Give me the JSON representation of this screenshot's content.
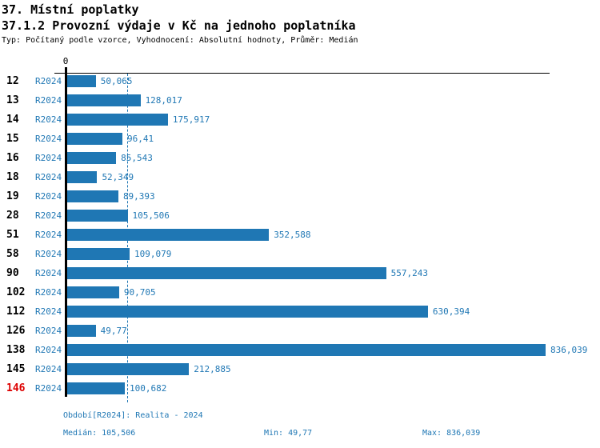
{
  "header": {
    "title1": "37. Místní poplatky",
    "title2": "37.1.2 Provozní výdaje v Kč na jednoho poplatníka",
    "subtitle": "Typ: Počítaný podle vzorce, Vyhodnocení: Absolutní hodnoty, Průměr: Medián"
  },
  "chart_data": {
    "type": "bar",
    "orientation": "horizontal",
    "series_label": "R2024",
    "zero_tick_label": "0",
    "xlim": [
      0,
      836.039
    ],
    "median_value": 105.506,
    "grid": "median-dashed-line",
    "rows": [
      {
        "id": "12",
        "value": 50.065,
        "label": "50,065",
        "highlighted": false
      },
      {
        "id": "13",
        "value": 128.017,
        "label": "128,017",
        "highlighted": false
      },
      {
        "id": "14",
        "value": 175.917,
        "label": "175,917",
        "highlighted": false
      },
      {
        "id": "15",
        "value": 96.41,
        "label": "96,41",
        "highlighted": false
      },
      {
        "id": "16",
        "value": 85.543,
        "label": "85,543",
        "highlighted": false
      },
      {
        "id": "18",
        "value": 52.349,
        "label": "52,349",
        "highlighted": false
      },
      {
        "id": "19",
        "value": 89.393,
        "label": "89,393",
        "highlighted": false
      },
      {
        "id": "28",
        "value": 105.506,
        "label": "105,506",
        "highlighted": false
      },
      {
        "id": "51",
        "value": 352.588,
        "label": "352,588",
        "highlighted": false
      },
      {
        "id": "58",
        "value": 109.079,
        "label": "109,079",
        "highlighted": false
      },
      {
        "id": "90",
        "value": 557.243,
        "label": "557,243",
        "highlighted": false
      },
      {
        "id": "102",
        "value": 90.705,
        "label": "90,705",
        "highlighted": false
      },
      {
        "id": "112",
        "value": 630.394,
        "label": "630,394",
        "highlighted": false
      },
      {
        "id": "126",
        "value": 49.77,
        "label": "49,77",
        "highlighted": false
      },
      {
        "id": "138",
        "value": 836.039,
        "label": "836,039",
        "highlighted": false
      },
      {
        "id": "145",
        "value": 212.885,
        "label": "212,885",
        "highlighted": false
      },
      {
        "id": "146",
        "value": 100.682,
        "label": "100,682",
        "highlighted": true
      }
    ]
  },
  "footer": {
    "period": "Období[R2024]: Realita - 2024",
    "median": "Medián: 105,506",
    "min": "Min: 49,77",
    "max": "Max: 836,039"
  },
  "colors": {
    "bar": "#1f77b4",
    "text_blue": "#1f77b4",
    "highlight_red": "#dd0000",
    "axis_black": "#000000"
  }
}
